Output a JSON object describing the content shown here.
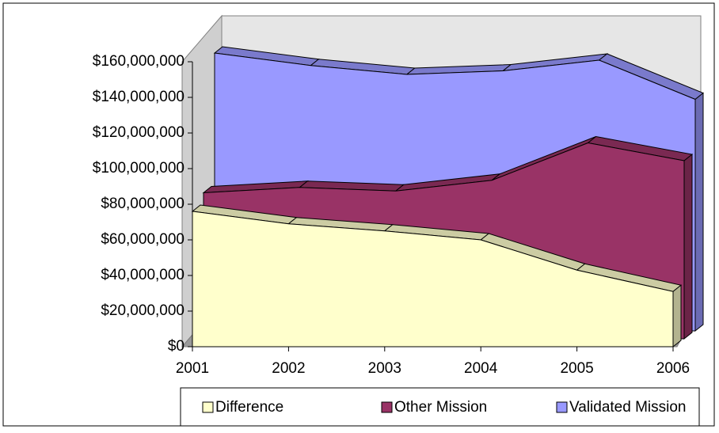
{
  "chart_data": {
    "type": "area",
    "categories": [
      "2001",
      "2002",
      "2003",
      "2004",
      "2005",
      "2006"
    ],
    "series": [
      {
        "name": "Difference",
        "color": "#ffffcc",
        "values": [
          76000000,
          69000000,
          65000000,
          60000000,
          43000000,
          31000000
        ]
      },
      {
        "name": "Other Mission",
        "color": "#993366",
        "values": [
          82000000,
          85000000,
          83000000,
          89000000,
          110000000,
          100000000
        ]
      },
      {
        "name": "Validated Mission",
        "color": "#9999ff",
        "values": [
          156000000,
          149000000,
          144000000,
          146000000,
          152000000,
          130000000
        ]
      }
    ],
    "ylim": [
      0,
      160000000
    ],
    "yticks": [
      {
        "value": 0,
        "label": "$0"
      },
      {
        "value": 20000000,
        "label": "$20,000,000"
      },
      {
        "value": 40000000,
        "label": "$40,000,000"
      },
      {
        "value": 60000000,
        "label": "$60,000,000"
      },
      {
        "value": 80000000,
        "label": "$80,000,000"
      },
      {
        "value": 100000000,
        "label": "$100,000,000"
      },
      {
        "value": 120000000,
        "label": "$120,000,000"
      },
      {
        "value": 140000000,
        "label": "$140,000,000"
      },
      {
        "value": 160000000,
        "label": "$160,000,000"
      }
    ],
    "legend": "bottom"
  }
}
